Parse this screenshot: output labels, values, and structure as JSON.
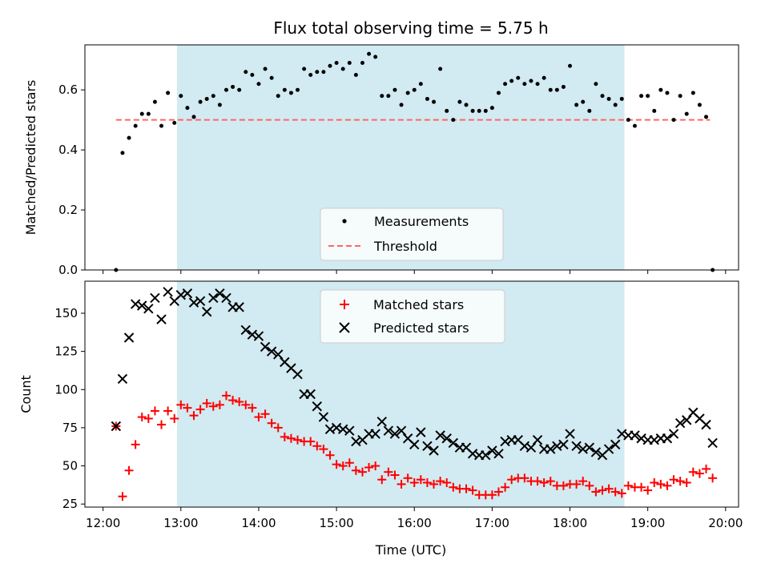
{
  "chart_data": [
    {
      "type": "scatter",
      "title": "Flux total observing time = 5.75 h",
      "ylabel": "Matched/Predicted stars",
      "xlabel": "",
      "xlim": [
        "11:46",
        "20:10"
      ],
      "ylim": [
        0,
        0.75
      ],
      "yticks": [
        "0.0",
        "0.2",
        "0.4",
        "0.6"
      ],
      "grid": false,
      "legend_position": "lower-center",
      "shaded_span": {
        "start": "12:57",
        "end": "18:42",
        "color": "#add8e6"
      },
      "threshold": {
        "name": "Threshold",
        "value": 0.5,
        "x_start": "12:10",
        "x_end": "19:48",
        "color": "#ff6666"
      },
      "series": [
        {
          "name": "Measurements",
          "color": "#000000",
          "x": [
            "12:10",
            "12:15",
            "12:20",
            "12:25",
            "12:30",
            "12:35",
            "12:40",
            "12:45",
            "12:50",
            "12:55",
            "13:00",
            "13:05",
            "13:10",
            "13:15",
            "13:20",
            "13:25",
            "13:30",
            "13:35",
            "13:40",
            "13:45",
            "13:50",
            "13:55",
            "14:00",
            "14:05",
            "14:10",
            "14:15",
            "14:20",
            "14:25",
            "14:30",
            "14:35",
            "14:40",
            "14:45",
            "14:50",
            "14:55",
            "15:00",
            "15:05",
            "15:10",
            "15:15",
            "15:20",
            "15:25",
            "15:30",
            "15:35",
            "15:40",
            "15:45",
            "15:50",
            "15:55",
            "16:00",
            "16:05",
            "16:10",
            "16:15",
            "16:20",
            "16:25",
            "16:30",
            "16:35",
            "16:40",
            "16:45",
            "16:50",
            "16:55",
            "17:00",
            "17:05",
            "17:10",
            "17:15",
            "17:20",
            "17:25",
            "17:30",
            "17:35",
            "17:40",
            "17:45",
            "17:50",
            "17:55",
            "18:00",
            "18:05",
            "18:10",
            "18:15",
            "18:20",
            "18:25",
            "18:30",
            "18:35",
            "18:40",
            "18:45",
            "18:50",
            "18:55",
            "19:00",
            "19:05",
            "19:10",
            "19:15",
            "19:20",
            "19:25",
            "19:30",
            "19:35",
            "19:40",
            "19:45",
            "19:50"
          ],
          "y": [
            0.0,
            0.39,
            0.44,
            0.48,
            0.52,
            0.52,
            0.56,
            0.48,
            0.59,
            0.49,
            0.58,
            0.54,
            0.51,
            0.56,
            0.57,
            0.58,
            0.55,
            0.6,
            0.61,
            0.6,
            0.66,
            0.65,
            0.62,
            0.67,
            0.64,
            0.58,
            0.6,
            0.59,
            0.6,
            0.67,
            0.65,
            0.66,
            0.66,
            0.68,
            0.69,
            0.67,
            0.69,
            0.65,
            0.69,
            0.72,
            0.71,
            0.58,
            0.58,
            0.6,
            0.55,
            0.59,
            0.6,
            0.62,
            0.57,
            0.56,
            0.67,
            0.53,
            0.5,
            0.56,
            0.55,
            0.53,
            0.53,
            0.53,
            0.54,
            0.59,
            0.62,
            0.63,
            0.64,
            0.62,
            0.63,
            0.62,
            0.64,
            0.6,
            0.6,
            0.61,
            0.68,
            0.55,
            0.56,
            0.53,
            0.62,
            0.58,
            0.57,
            0.55,
            0.57,
            0.5,
            0.48,
            0.58,
            0.58,
            0.53,
            0.6,
            0.59,
            0.5,
            0.58,
            0.52,
            0.59,
            0.55,
            0.51,
            0.0
          ]
        }
      ]
    },
    {
      "type": "scatter",
      "title": "",
      "xlabel": "Time (UTC)",
      "ylabel": "Count",
      "xlim": [
        "11:46",
        "20:10"
      ],
      "ylim": [
        23,
        171
      ],
      "xticks": [
        "12:00",
        "13:00",
        "14:00",
        "15:00",
        "16:00",
        "17:00",
        "18:00",
        "19:00",
        "20:00"
      ],
      "yticks": [
        "25",
        "50",
        "75",
        "100",
        "125",
        "150"
      ],
      "grid": false,
      "legend_position": "top-center",
      "shaded_span": {
        "start": "12:57",
        "end": "18:42",
        "color": "#add8e6"
      },
      "series": [
        {
          "name": "Matched stars",
          "marker": "plus",
          "color": "#ff0000",
          "x": [
            "12:10",
            "12:15",
            "12:20",
            "12:25",
            "12:30",
            "12:35",
            "12:40",
            "12:45",
            "12:50",
            "12:55",
            "13:00",
            "13:05",
            "13:10",
            "13:15",
            "13:20",
            "13:25",
            "13:30",
            "13:35",
            "13:40",
            "13:45",
            "13:50",
            "13:55",
            "14:00",
            "14:05",
            "14:10",
            "14:15",
            "14:20",
            "14:25",
            "14:30",
            "14:35",
            "14:40",
            "14:45",
            "14:50",
            "14:55",
            "15:00",
            "15:05",
            "15:10",
            "15:15",
            "15:20",
            "15:25",
            "15:30",
            "15:35",
            "15:40",
            "15:45",
            "15:50",
            "15:55",
            "16:00",
            "16:05",
            "16:10",
            "16:15",
            "16:20",
            "16:25",
            "16:30",
            "16:35",
            "16:40",
            "16:45",
            "16:50",
            "16:55",
            "17:00",
            "17:05",
            "17:10",
            "17:15",
            "17:20",
            "17:25",
            "17:30",
            "17:35",
            "17:40",
            "17:45",
            "17:50",
            "17:55",
            "18:00",
            "18:05",
            "18:10",
            "18:15",
            "18:20",
            "18:25",
            "18:30",
            "18:35",
            "18:40",
            "18:45",
            "18:50",
            "18:55",
            "19:00",
            "19:05",
            "19:10",
            "19:15",
            "19:20",
            "19:25",
            "19:30",
            "19:35",
            "19:40",
            "19:45",
            "19:50"
          ],
          "y": [
            76,
            30,
            47,
            64,
            82,
            81,
            86,
            77,
            86,
            81,
            90,
            88,
            83,
            87,
            91,
            89,
            90,
            96,
            93,
            92,
            90,
            88,
            82,
            84,
            78,
            75,
            69,
            68,
            67,
            66,
            66,
            63,
            61,
            57,
            51,
            50,
            52,
            47,
            46,
            49,
            50,
            41,
            46,
            44,
            38,
            42,
            39,
            41,
            39,
            38,
            40,
            39,
            36,
            35,
            35,
            34,
            31,
            31,
            31,
            33,
            36,
            41,
            42,
            42,
            40,
            40,
            39,
            40,
            37,
            37,
            38,
            38,
            40,
            37,
            33,
            34,
            35,
            33,
            32,
            37,
            36,
            36,
            34,
            39,
            38,
            37,
            41,
            40,
            39,
            46,
            45,
            48,
            42
          ],
          "y_note": ""
        },
        {
          "name": "Predicted stars",
          "marker": "x",
          "color": "#000000",
          "x": [
            "12:10",
            "12:15",
            "12:20",
            "12:25",
            "12:30",
            "12:35",
            "12:40",
            "12:45",
            "12:50",
            "12:55",
            "13:00",
            "13:05",
            "13:10",
            "13:15",
            "13:20",
            "13:25",
            "13:30",
            "13:35",
            "13:40",
            "13:45",
            "13:50",
            "13:55",
            "14:00",
            "14:05",
            "14:10",
            "14:15",
            "14:20",
            "14:25",
            "14:30",
            "14:35",
            "14:40",
            "14:45",
            "14:50",
            "14:55",
            "15:00",
            "15:05",
            "15:10",
            "15:15",
            "15:20",
            "15:25",
            "15:30",
            "15:35",
            "15:40",
            "15:45",
            "15:50",
            "15:55",
            "16:00",
            "16:05",
            "16:10",
            "16:15",
            "16:20",
            "16:25",
            "16:30",
            "16:35",
            "16:40",
            "16:45",
            "16:50",
            "16:55",
            "17:00",
            "17:05",
            "17:10",
            "17:15",
            "17:20",
            "17:25",
            "17:30",
            "17:35",
            "17:40",
            "17:45",
            "17:50",
            "17:55",
            "18:00",
            "18:05",
            "18:10",
            "18:15",
            "18:20",
            "18:25",
            "18:30",
            "18:35",
            "18:40",
            "18:45",
            "18:50",
            "18:55",
            "19:00",
            "19:05",
            "19:10",
            "19:15",
            "19:20",
            "19:25",
            "19:30",
            "19:35",
            "19:40",
            "19:45",
            "19:50"
          ],
          "y": [
            76,
            107,
            134,
            156,
            155,
            153,
            160,
            146,
            164,
            158,
            162,
            163,
            157,
            158,
            151,
            160,
            163,
            160,
            154,
            154,
            139,
            136,
            135,
            128,
            125,
            123,
            118,
            114,
            110,
            97,
            97,
            89,
            82,
            74,
            75,
            74,
            73,
            66,
            67,
            71,
            71,
            79,
            73,
            71,
            73,
            68,
            64,
            72,
            63,
            60,
            70,
            68,
            65,
            62,
            62,
            58,
            57,
            57,
            60,
            58,
            66,
            67,
            67,
            63,
            62,
            67,
            61,
            61,
            63,
            64,
            71,
            63,
            61,
            62,
            59,
            57,
            61,
            64,
            71,
            70,
            70,
            68,
            67,
            67,
            68,
            68,
            71,
            78,
            80,
            85,
            81,
            77,
            65
          ]
        }
      ]
    }
  ]
}
